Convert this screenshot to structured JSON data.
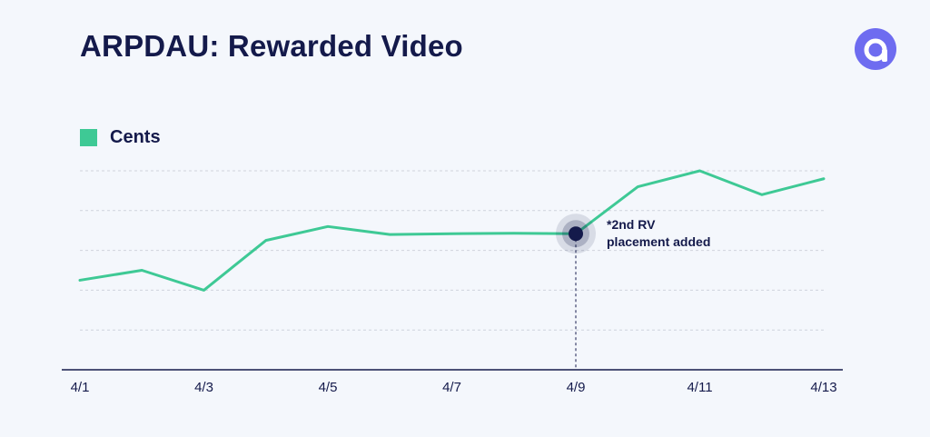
{
  "header": {
    "title": "ARPDAU: Rewarded Video"
  },
  "logo": {
    "icon": "applovin-logo-icon",
    "color": "#6e6cf0"
  },
  "legend": {
    "label": "Cents",
    "color": "#3ec995"
  },
  "chart_data": {
    "type": "line",
    "title": "ARPDAU: Rewarded Video",
    "xlabel": "",
    "ylabel": "",
    "x": [
      "4/1",
      "4/2",
      "4/3",
      "4/4",
      "4/5",
      "4/6",
      "4/7",
      "4/8",
      "4/9",
      "4/10",
      "4/11",
      "4/12",
      "4/13"
    ],
    "tick_labels": [
      "4/1",
      "4/3",
      "4/5",
      "4/7",
      "4/9",
      "4/11",
      "4/13"
    ],
    "series": [
      {
        "name": "Cents",
        "color": "#3ec995",
        "values": [
          2.25,
          2.5,
          2.0,
          3.25,
          3.6,
          3.4,
          3.42,
          3.43,
          3.42,
          4.6,
          5.0,
          4.4,
          4.8
        ]
      }
    ],
    "ylim": [
      0,
      5.0
    ],
    "grid": true,
    "legend_position": "top-left",
    "annotation": {
      "x": "4/9",
      "text_lines": [
        "*2nd RV",
        "placement added"
      ],
      "marker_color": "#141a4b"
    }
  }
}
